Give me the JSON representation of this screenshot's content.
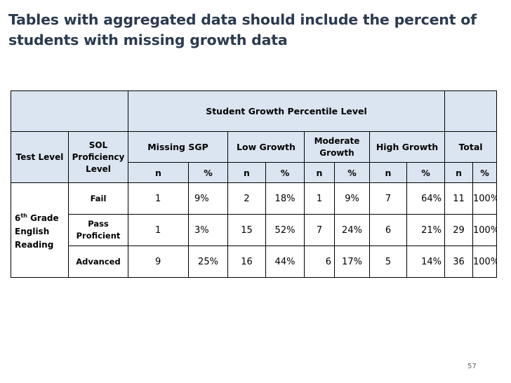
{
  "title": {
    "line1": "Tables with aggregated data should include the percent of",
    "line2": "students with missing growth data"
  },
  "table": {
    "group_header": "Student Growth Percentile Level",
    "row_header_1": "Test Level",
    "row_header_2_line1": "SOL",
    "row_header_2_line2": "Proficiency",
    "row_header_2_line3": "Level",
    "groups": [
      "Missing SGP",
      "Low Growth",
      "Moderate Growth",
      "High Growth",
      "Total"
    ],
    "moderate_line1": "Moderate",
    "moderate_line2": "Growth",
    "sub_n": "n",
    "sub_pct": "%",
    "test_level_prefix": "6",
    "test_level_sup": "th",
    "test_level_rest1": " Grade",
    "test_level_line2": "English",
    "test_level_line3": "Reading",
    "rows": [
      {
        "level": "Fail",
        "cells": [
          "1",
          "9%",
          "2",
          "18%",
          "1",
          "9%",
          "7",
          "64%",
          "11",
          "100%"
        ]
      },
      {
        "level_line1": "Pass",
        "level_line2": "Proficient",
        "cells": [
          "1",
          "3%",
          "15",
          "52%",
          "7",
          "24%",
          "6",
          "21%",
          "29",
          "100%"
        ]
      },
      {
        "level": "Advanced",
        "cells": [
          "9",
          "25%",
          "16",
          "44%",
          "6",
          "17%",
          "5",
          "14%",
          "36",
          "100%"
        ]
      }
    ]
  },
  "page_number": "57"
}
